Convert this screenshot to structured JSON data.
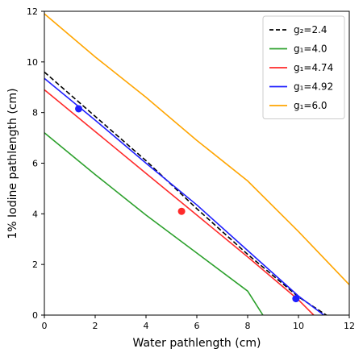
{
  "chart_data": {
    "type": "line",
    "xlabel": "Water pathlength (cm)",
    "ylabel": "1% Iodine  pathlength (cm)",
    "xlim": [
      0,
      12
    ],
    "ylim": [
      0,
      12
    ],
    "xticks": [
      "0",
      "2",
      "4",
      "6",
      "8",
      "10",
      "12"
    ],
    "yticks": [
      "0",
      "2",
      "4",
      "6",
      "8",
      "10",
      "12"
    ],
    "grid": false,
    "legend_position": "top-right",
    "series": [
      {
        "name": "g₂=2.4",
        "color": "#000000",
        "dashed": true,
        "x": [
          0,
          2,
          4,
          6,
          8,
          10,
          11.1
        ],
        "y": [
          9.6,
          7.85,
          6.1,
          4.2,
          2.4,
          0.72,
          0
        ]
      },
      {
        "name": "g₁=4.0",
        "color": "#2ca02c",
        "dashed": false,
        "x": [
          0,
          2,
          4,
          6,
          8,
          8.6
        ],
        "y": [
          7.2,
          5.55,
          3.95,
          2.45,
          0.95,
          0
        ]
      },
      {
        "name": "g₁=4.74",
        "color": "#ff2a2a",
        "dashed": false,
        "x": [
          0,
          2,
          4,
          6,
          8,
          10,
          10.6
        ],
        "y": [
          8.9,
          7.25,
          5.6,
          3.95,
          2.3,
          0.6,
          0
        ]
      },
      {
        "name": "g₁=4.92",
        "color": "#1f1fff",
        "dashed": false,
        "x": [
          0,
          2,
          4,
          6,
          8,
          10,
          11.0
        ],
        "y": [
          9.35,
          7.7,
          6.0,
          4.35,
          2.55,
          0.75,
          0
        ]
      },
      {
        "name": "g₁=6.0",
        "color": "#ffa500",
        "dashed": false,
        "x": [
          0,
          2,
          4,
          6,
          8,
          10,
          12
        ],
        "y": [
          11.9,
          10.2,
          8.6,
          6.9,
          5.3,
          3.3,
          1.2
        ]
      }
    ],
    "points": [
      {
        "x": 1.35,
        "y": 8.15,
        "color": "#1f1fff"
      },
      {
        "x": 5.4,
        "y": 4.1,
        "color": "#ff2a2a"
      },
      {
        "x": 9.9,
        "y": 0.65,
        "color": "#1f1fff"
      }
    ]
  }
}
